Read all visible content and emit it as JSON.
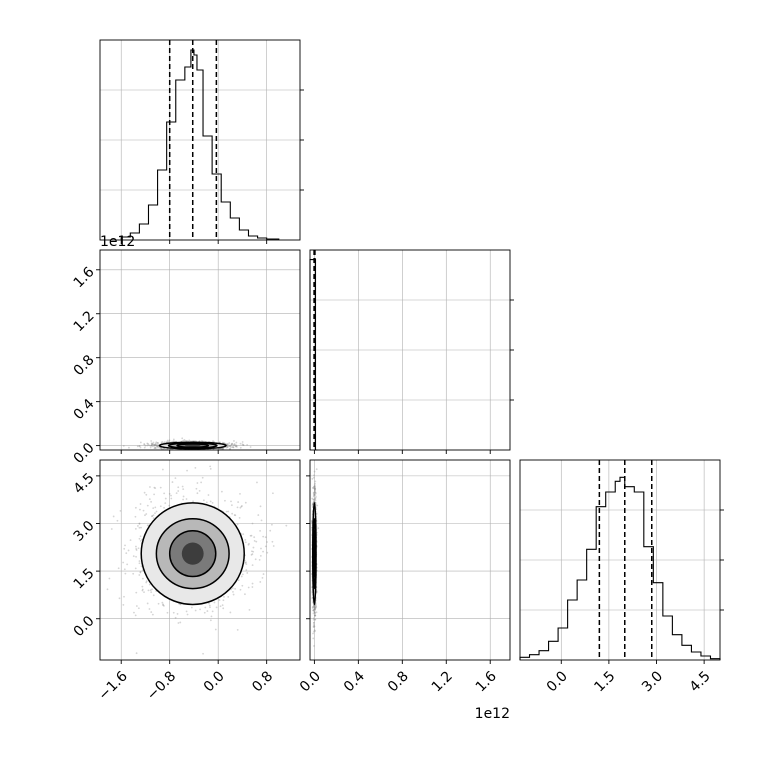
{
  "chart_data": {
    "type": "corner",
    "description_free": true,
    "grid": true,
    "parameters": [
      {
        "ticks": [
          -1.6,
          -0.8,
          0.0,
          0.8
        ],
        "tick_labels": [
          "−1.6",
          "−0.8",
          "0.0",
          "0.8"
        ],
        "range": [
          -1.95,
          1.35
        ]
      },
      {
        "ticks": [
          0.0,
          0.4,
          0.8,
          1.2,
          1.6
        ],
        "tick_labels": [
          "0.0",
          "0.4",
          "0.8",
          "1.2",
          "1.6"
        ],
        "range": [
          -0.04,
          1.78
        ],
        "offset_label": "1e12"
      },
      {
        "ticks": [
          0.0,
          1.5,
          3.0,
          4.5
        ],
        "tick_labels": [
          "0.0",
          "1.5",
          "3.0",
          "4.5"
        ],
        "range": [
          -1.3,
          5.0
        ]
      }
    ],
    "marginals": [
      {
        "param": 0,
        "bin_edges": [
          -1.6,
          -1.45,
          -1.3,
          -1.15,
          -1.0,
          -0.85,
          -0.7,
          -0.55,
          -0.45,
          -0.4,
          -0.35,
          -0.25,
          -0.1,
          0.05,
          0.2,
          0.35,
          0.5,
          0.65,
          0.8,
          1.0
        ],
        "counts": [
          3,
          7,
          16,
          35,
          70,
          118,
          160,
          173,
          190,
          185,
          170,
          104,
          66,
          38,
          22,
          10,
          4,
          2,
          1
        ],
        "quantiles": [
          -0.8,
          -0.42,
          -0.03
        ],
        "ylim": [
          0,
          200
        ]
      },
      {
        "param": 1,
        "bin_edges": [
          -0.04,
          -0.01,
          0.01,
          0.03
        ],
        "counts": [
          1,
          1,
          0
        ],
        "quantiles": [
          -0.003,
          0.0,
          0.005
        ],
        "ylim": [
          0,
          1.05
        ]
      },
      {
        "param": 2,
        "bin_edges": [
          -1.3,
          -1.0,
          -0.7,
          -0.4,
          -0.1,
          0.2,
          0.5,
          0.8,
          1.1,
          1.4,
          1.7,
          1.85,
          2.0,
          2.3,
          2.6,
          2.9,
          3.2,
          3.5,
          3.8,
          4.1,
          4.4,
          4.7,
          5.0
        ],
        "counts": [
          2,
          4,
          7,
          14,
          24,
          45,
          60,
          83,
          115,
          126,
          134,
          137,
          130,
          126,
          85,
          58,
          33,
          19,
          11,
          6,
          3,
          1
        ],
        "quantiles": [
          1.2,
          2.0,
          2.85
        ],
        "ylim": [
          0,
          150
        ]
      }
    ],
    "joint": [
      {
        "x_param": 0,
        "y_param": 1,
        "center": [
          -0.42,
          0.0
        ],
        "contour_half_widths": [
          0.55,
          0.4,
          0.26,
          0.13
        ],
        "contour_half_heights": [
          0.03,
          0.022,
          0.015,
          0.008
        ]
      },
      {
        "x_param": 0,
        "y_param": 2,
        "center": [
          -0.42,
          2.05
        ],
        "contour_half_widths": [
          0.85,
          0.6,
          0.38,
          0.18
        ],
        "contour_half_heights": [
          1.6,
          1.1,
          0.72,
          0.35
        ]
      },
      {
        "x_param": 1,
        "y_param": 2,
        "center": [
          0.0,
          2.05
        ],
        "contour_half_widths": [
          0.015,
          0.01,
          0.006,
          0.003
        ],
        "contour_half_heights": [
          1.6,
          1.1,
          0.72,
          0.35
        ]
      }
    ]
  }
}
